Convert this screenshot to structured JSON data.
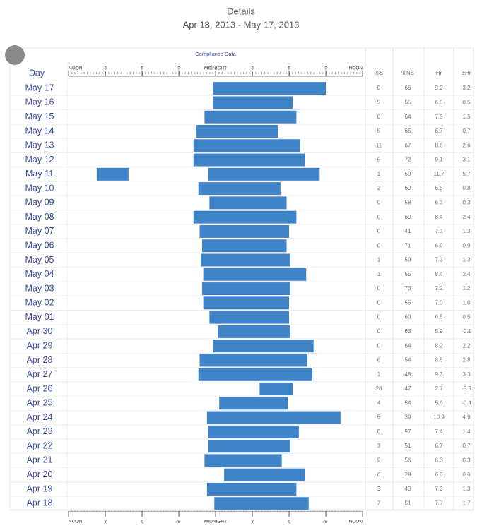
{
  "header": {
    "title": "Details",
    "subtitle": "Apr 18, 2013 - May 17, 2013"
  },
  "chart_data": {
    "type": "range-bar",
    "title": "Compliance Data",
    "category_label": "Day",
    "categories": [
      "May 17",
      "May 16",
      "May 15",
      "May 14",
      "May 13",
      "May 12",
      "May 11",
      "May 10",
      "May 09",
      "May 08",
      "May 07",
      "May 06",
      "May 05",
      "May 04",
      "May 03",
      "May 02",
      "May 01",
      "Apr 30",
      "Apr 29",
      "Apr 28",
      "Apr 27",
      "Apr 26",
      "Apr 25",
      "Apr 24",
      "Apr 23",
      "Apr 22",
      "Apr 21",
      "Apr 20",
      "Apr 19",
      "Apr 18"
    ],
    "segments": [
      [
        [
          11.8,
          21.0
        ]
      ],
      [
        [
          11.8,
          18.3
        ]
      ],
      [
        [
          11.1,
          18.6
        ]
      ],
      [
        [
          10.4,
          17.1
        ]
      ],
      [
        [
          10.2,
          18.9
        ]
      ],
      [
        [
          10.2,
          19.3
        ]
      ],
      [
        [
          2.3,
          4.9
        ],
        [
          11.4,
          20.5
        ]
      ],
      [
        [
          10.6,
          17.3
        ]
      ],
      [
        [
          11.5,
          17.8
        ]
      ],
      [
        [
          10.2,
          18.6
        ]
      ],
      [
        [
          10.7,
          18.0
        ]
      ],
      [
        [
          10.9,
          17.8
        ]
      ],
      [
        [
          10.8,
          18.1
        ]
      ],
      [
        [
          11.0,
          19.4
        ]
      ],
      [
        [
          10.9,
          18.1
        ]
      ],
      [
        [
          11.0,
          18.0
        ]
      ],
      [
        [
          11.5,
          18.0
        ]
      ],
      [
        [
          12.2,
          18.1
        ]
      ],
      [
        [
          11.8,
          20.0
        ]
      ],
      [
        [
          10.7,
          19.5
        ]
      ],
      [
        [
          10.6,
          19.9
        ]
      ],
      [
        [
          15.6,
          18.3
        ]
      ],
      [
        [
          12.3,
          17.9
        ]
      ],
      [
        [
          11.3,
          22.2
        ]
      ],
      [
        [
          11.4,
          18.8
        ]
      ],
      [
        [
          11.4,
          18.1
        ]
      ],
      [
        [
          11.1,
          17.4
        ]
      ],
      [
        [
          12.7,
          19.3
        ]
      ],
      [
        [
          11.3,
          18.6
        ]
      ],
      [
        [
          11.9,
          19.6
        ]
      ]
    ],
    "color": "#3f83c9",
    "xlim": [
      0,
      24
    ],
    "xticks": [
      {
        "value": 0,
        "label": "NOON"
      },
      3,
      6,
      9,
      {
        "value": 12,
        "label": "MIDNIGHT"
      },
      {
        "value": 15,
        "label": "3"
      },
      {
        "value": 18,
        "label": "6"
      },
      {
        "value": 21,
        "label": "9"
      },
      {
        "value": 24,
        "label": "NOON"
      }
    ]
  },
  "table": {
    "columns": [
      "%S",
      "%NS",
      "Hr",
      "±Hr"
    ],
    "rows": [
      [
        "0",
        "66",
        "9.2",
        "3.2"
      ],
      [
        "5",
        "55",
        "6.5",
        "0.5"
      ],
      [
        "0",
        "64",
        "7.5",
        "1.5"
      ],
      [
        "5",
        "65",
        "6.7",
        "0.7"
      ],
      [
        "11",
        "67",
        "8.6",
        "2.6"
      ],
      [
        "5",
        "72",
        "9.1",
        "3.1"
      ],
      [
        "1",
        "59",
        "11.7",
        "5.7"
      ],
      [
        "2",
        "69",
        "6.8",
        "0.8"
      ],
      [
        "0",
        "58",
        "6.3",
        "0.3"
      ],
      [
        "0",
        "69",
        "8.4",
        "2.4"
      ],
      [
        "0",
        "41",
        "7.3",
        "1.3"
      ],
      [
        "0",
        "71",
        "6.9",
        "0.9"
      ],
      [
        "1",
        "59",
        "7.3",
        "1.3"
      ],
      [
        "1",
        "55",
        "8.4",
        "2.4"
      ],
      [
        "0",
        "73",
        "7.2",
        "1.2"
      ],
      [
        "0",
        "55",
        "7.0",
        "1.0"
      ],
      [
        "0",
        "60",
        "6.5",
        "0.5"
      ],
      [
        "0",
        "63",
        "5.9",
        "-0.1"
      ],
      [
        "0",
        "64",
        "8.2",
        "2.2"
      ],
      [
        "6",
        "54",
        "8.8",
        "2.8"
      ],
      [
        "1",
        "48",
        "9.3",
        "3.3"
      ],
      [
        "28",
        "47",
        "2.7",
        "-3.3"
      ],
      [
        "4",
        "54",
        "5.6",
        "-0.4"
      ],
      [
        "5",
        "39",
        "10.9",
        "4.9"
      ],
      [
        "0",
        "97",
        "7.4",
        "1.4"
      ],
      [
        "3",
        "51",
        "6.7",
        "0.7"
      ],
      [
        "9",
        "56",
        "6.3",
        "0.3"
      ],
      [
        "6",
        "29",
        "6.6",
        "0.6"
      ],
      [
        "3",
        "40",
        "7.3",
        "1.3"
      ],
      [
        "7",
        "51",
        "7.7",
        "1.7"
      ]
    ]
  }
}
